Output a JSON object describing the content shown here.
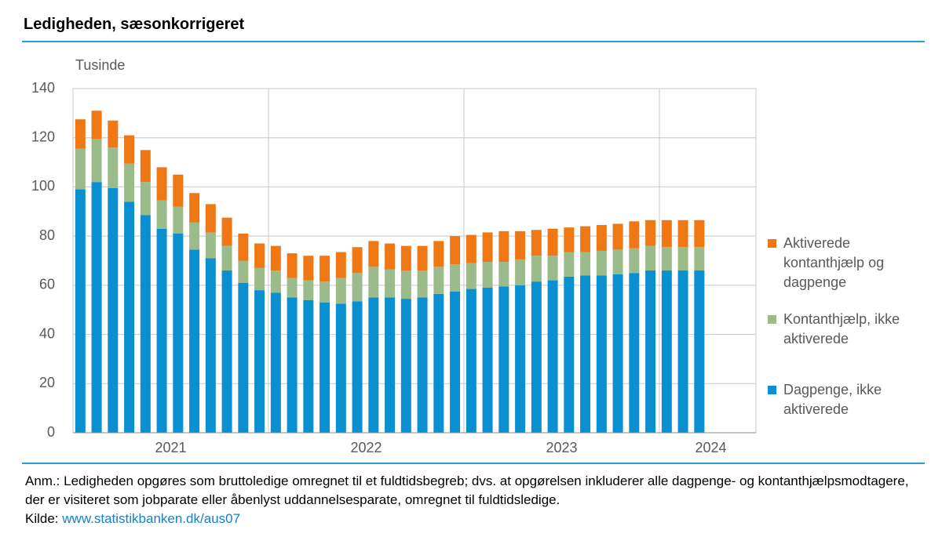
{
  "chart_data": {
    "type": "stacked_bar",
    "title": "Ledigheden, sæsonkorrigeret",
    "y_label": "Tusinde",
    "categories": [
      null,
      null,
      null,
      null,
      null,
      null,
      null,
      null,
      null,
      null,
      null,
      null,
      null,
      null,
      null,
      null,
      null,
      null,
      null,
      null,
      null,
      null,
      null,
      null,
      null,
      null,
      null,
      null,
      null,
      null,
      null,
      null,
      null,
      null,
      null,
      null,
      null,
      null,
      null
    ],
    "year_labels": [
      "2021",
      "2022",
      "2023",
      "2024"
    ],
    "ylim": [
      0,
      140
    ],
    "yticks": [
      0,
      20,
      40,
      60,
      80,
      100,
      120,
      140
    ],
    "grid": true,
    "legend": "right",
    "series": [
      {
        "name": "Dagpenge, ikke aktiverede",
        "color": "#0a8fd1",
        "values": [
          99,
          102,
          99.5,
          94,
          88.5,
          83,
          81,
          74.5,
          71,
          66,
          61,
          58,
          57,
          55,
          54,
          53,
          52.5,
          53.5,
          55,
          55,
          54.5,
          55,
          56.5,
          57.5,
          58.5,
          59,
          59.5,
          60,
          61.5,
          62,
          63.5,
          64,
          64,
          64.5,
          65,
          66,
          66,
          66,
          66
        ]
      },
      {
        "name": "Kontanthjælp, ikke aktiverede",
        "color": "#9bbb8a",
        "values": [
          16.5,
          17.5,
          16.5,
          15.5,
          13.5,
          11.5,
          11,
          11,
          10.5,
          10,
          9,
          9,
          9,
          8,
          8,
          8.5,
          10.5,
          11.5,
          12.5,
          11.5,
          11.5,
          11,
          11,
          11,
          10.5,
          10.5,
          10,
          10.5,
          10.5,
          10,
          10,
          9.5,
          10,
          10,
          10,
          10,
          9.5,
          9.5,
          9.5
        ]
      },
      {
        "name": "Aktiverede kontanthjælp og dagpenge",
        "color": "#f07814",
        "values": [
          12,
          11.5,
          11,
          11.5,
          13,
          13.5,
          13,
          12,
          11.5,
          11.5,
          11,
          10,
          10,
          10,
          10,
          10.5,
          10.5,
          10.5,
          10.5,
          10.5,
          10,
          10,
          10.5,
          11.5,
          11.5,
          12,
          12.5,
          11.5,
          10.5,
          11,
          10,
          10.5,
          10.5,
          10.5,
          11,
          10.5,
          11,
          11,
          11
        ]
      }
    ],
    "note": "Anm.: Ledigheden opgøres som bruttoledige omregnet til et fuldtidsbegreb; dvs. at opgørelsen inkluderer alle dagpenge- og kontanthjælpsmodtagere, der er visiteret som jobparate eller åbenlyst uddannelsesparate, omregnet til fuldtidsledige.",
    "source_label": "Kilde:",
    "source_link": "www.statistikbanken.dk/aus07"
  }
}
